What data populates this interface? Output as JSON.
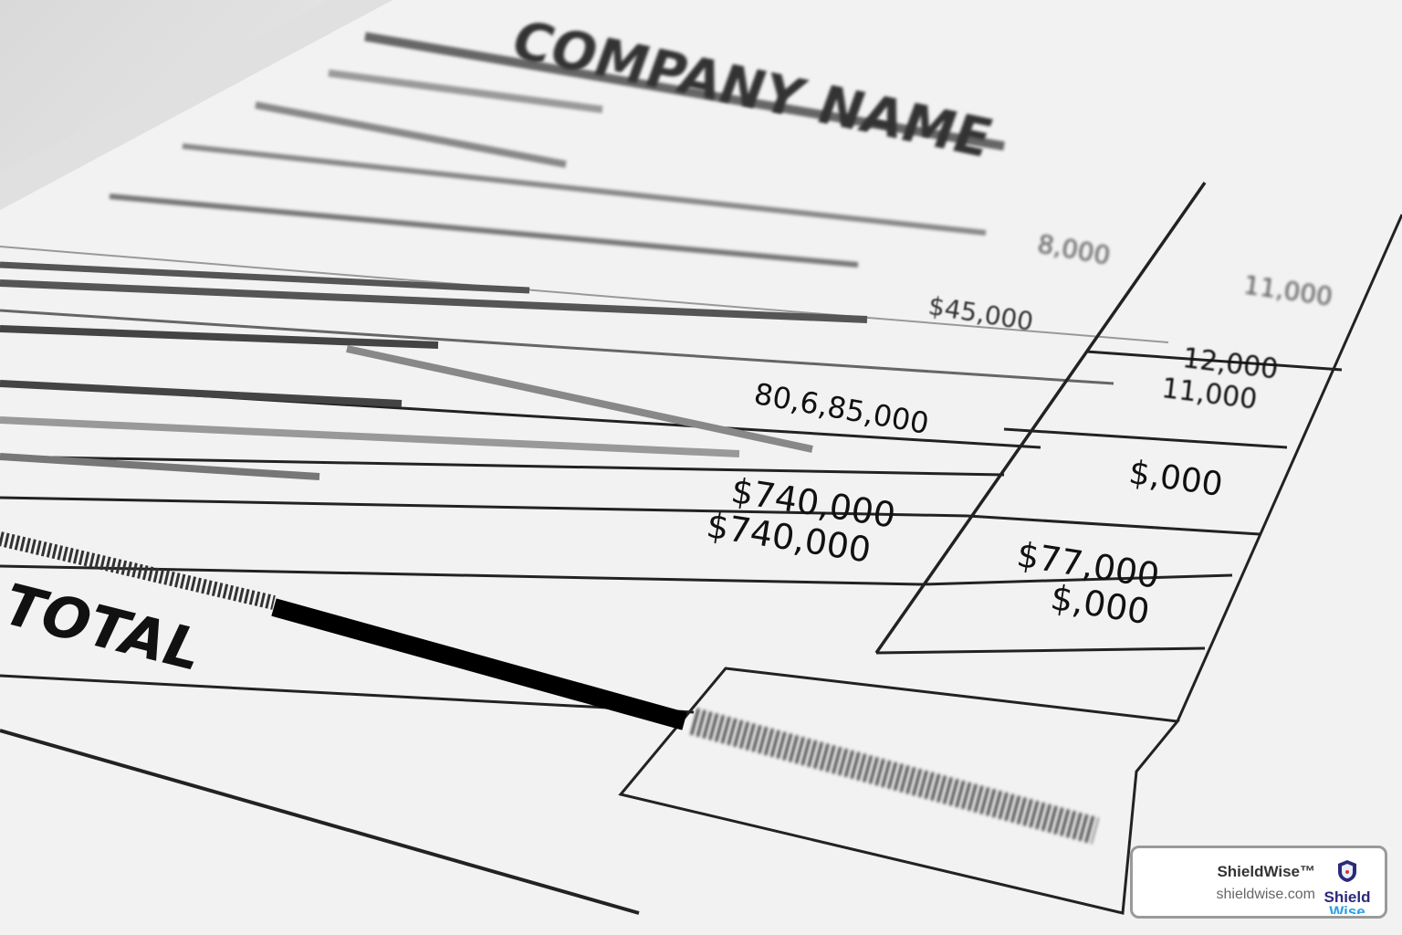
{
  "document": {
    "company_name": "COMPANY NAME",
    "values": {
      "r1_a": "8,000",
      "r1_b": "11,000",
      "r2_a": "$45,000",
      "r3_b": "12,000",
      "r4_b": "11,000",
      "r5_a": "80,6,85,000",
      "r6_b": "$,000",
      "r7_a": "$740,000",
      "r8_a": "$740,000",
      "r9_b": "$77,000",
      "r10_b": "$,000"
    },
    "total_label": "TOTAL"
  },
  "badge": {
    "brand": "ShieldWise™",
    "url": "shieldwise.com",
    "logo_text_1": "Shield",
    "logo_text_2": "Wise",
    "colors": {
      "navy": "#2b2a7a",
      "blue": "#2aa0e8"
    }
  }
}
